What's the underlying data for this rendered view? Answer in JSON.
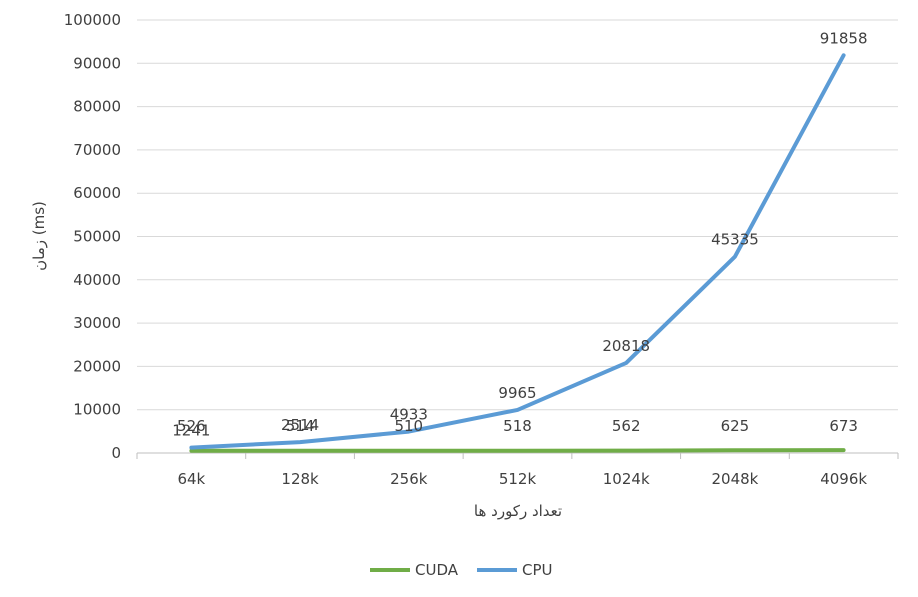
{
  "chart_data": {
    "type": "line",
    "categories": [
      "64k",
      "128k",
      "256k",
      "512k",
      "1024k",
      "2048k",
      "4096k"
    ],
    "series": [
      {
        "name": "CUDA",
        "color": "#70AD47",
        "values": [
          526,
          514,
          510,
          518,
          562,
          625,
          673
        ]
      },
      {
        "name": "CPU",
        "color": "#5B9BD5",
        "values": [
          1241,
          2514,
          4933,
          9965,
          20818,
          45335,
          91858
        ]
      }
    ],
    "y_ticks": [
      "0",
      "10000",
      "20000",
      "30000",
      "40000",
      "50000",
      "60000",
      "70000",
      "80000",
      "90000",
      "100000"
    ],
    "ylim": [
      0,
      100000
    ],
    "xlabel": "تعداد رکورد ها",
    "ylabel": "زمان (ms)",
    "grid": true,
    "legend_position": "bottom",
    "data_labels": true
  }
}
